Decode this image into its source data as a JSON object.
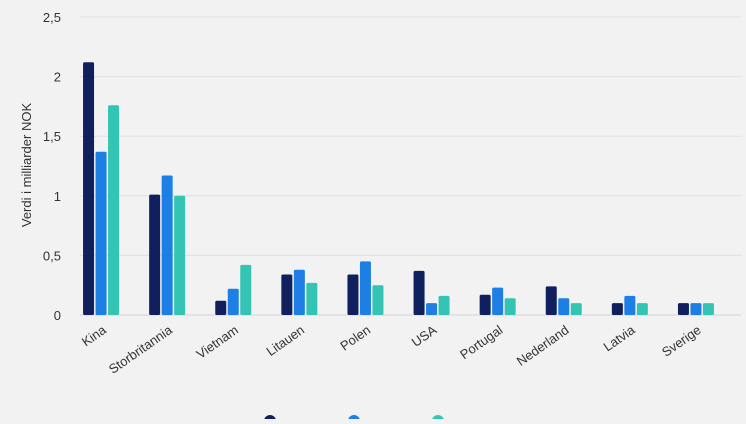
{
  "chart_data": {
    "type": "bar",
    "ylabel": "Verdi i milliarder NOK",
    "ylim": [
      0,
      2.5
    ],
    "yticks": [
      0,
      0.5,
      1,
      1.5,
      2,
      2.5
    ],
    "ytick_labels": [
      "0",
      "0,5",
      "1",
      "1,5",
      "2",
      "2,5"
    ],
    "grid": true,
    "legend_position": "bottom",
    "categories": [
      "Kina",
      "Storbritannia",
      "Vietnam",
      "Litauen",
      "Polen",
      "USA",
      "Portugal",
      "Nederland",
      "Latvia",
      "Sverige"
    ],
    "series": [
      {
        "color": "#10205e",
        "values": [
          2.12,
          1.01,
          0.12,
          0.34,
          0.34,
          0.37,
          0.17,
          0.24,
          0.1,
          0.1
        ]
      },
      {
        "color": "#1d7fe3",
        "values": [
          1.37,
          1.17,
          0.22,
          0.38,
          0.45,
          0.1,
          0.23,
          0.14,
          0.16,
          0.1
        ]
      },
      {
        "color": "#34c4b4",
        "values": [
          1.76,
          1.0,
          0.42,
          0.27,
          0.25,
          0.16,
          0.14,
          0.1,
          0.1,
          0.1
        ]
      }
    ]
  }
}
